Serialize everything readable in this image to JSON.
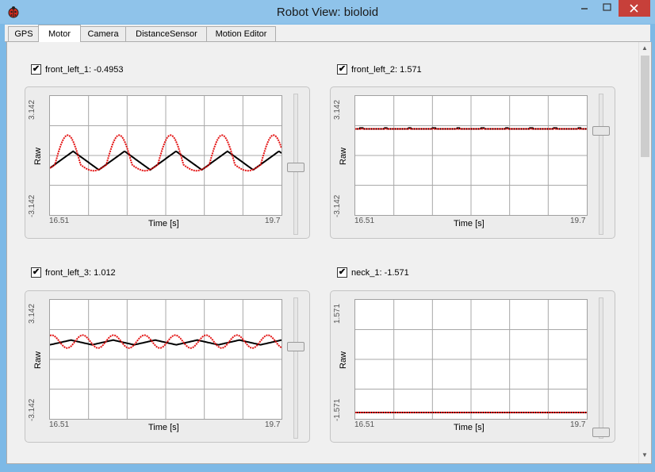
{
  "window": {
    "title": "Robot View: bioloid"
  },
  "tabs": [
    {
      "label": "GPS"
    },
    {
      "label": "Motor"
    },
    {
      "label": "Camera"
    },
    {
      "label": "DistanceSensor"
    },
    {
      "label": "Motion Editor"
    }
  ],
  "colors": {
    "target": "#e31313",
    "actual": "#000000",
    "window_frame": "#8fc3ea",
    "close_button": "#c7403a"
  },
  "motors": [
    {
      "label": "front_left_1: -0.4953",
      "checked": true,
      "y_max": "3.142",
      "y_min": "-3.142",
      "ylabel": "Raw",
      "x_start": "16.51",
      "x_end": "19.7",
      "xlabel": "Time [s]",
      "slider_level": 0.47
    },
    {
      "label": "front_left_2: 1.571",
      "checked": true,
      "y_max": "3.142",
      "y_min": "-3.142",
      "ylabel": "Raw",
      "x_start": "16.51",
      "x_end": "19.7",
      "xlabel": "Time [s]",
      "slider_level": 0.75
    },
    {
      "label": "front_left_3: 1.012",
      "checked": true,
      "y_max": "3.142",
      "y_min": "-3.142",
      "ylabel": "Raw",
      "x_start": "16.51",
      "x_end": "19.7",
      "xlabel": "Time [s]",
      "slider_level": 0.66
    },
    {
      "label": "neck_1: -1.571",
      "checked": true,
      "y_max": "1.571",
      "y_min": "-1.571",
      "ylabel": "Raw",
      "x_start": "16.51",
      "x_end": "19.7",
      "xlabel": "Time [s]",
      "slider_level": 0.0
    }
  ]
}
